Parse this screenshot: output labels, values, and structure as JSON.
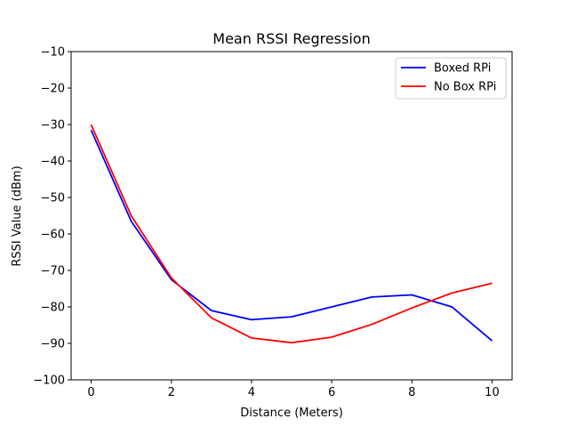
{
  "chart_data": {
    "type": "line",
    "title": "Mean RSSI Regression",
    "xlabel": "Distance (Meters)",
    "ylabel": "RSSI Value (dBm)",
    "xlim": [
      -0.5,
      10.5
    ],
    "ylim": [
      -100,
      -10
    ],
    "xticks": [
      0,
      2,
      4,
      6,
      8,
      10
    ],
    "yticks": [
      -100,
      -90,
      -80,
      -70,
      -60,
      -50,
      -40,
      -30,
      -20,
      -10
    ],
    "grid": false,
    "legend_position": "top-right",
    "x": [
      0,
      1,
      2,
      3,
      4,
      5,
      6,
      7,
      8,
      9,
      10
    ],
    "series": [
      {
        "name": "Boxed RPi",
        "color": "#0000ff",
        "values": [
          -31.5,
          -56.5,
          -72.5,
          -81.0,
          -83.5,
          -82.7,
          -80.0,
          -77.3,
          -76.7,
          -80.0,
          -89.3
        ]
      },
      {
        "name": "No Box RPi",
        "color": "#ff0000",
        "values": [
          -30.0,
          -55.0,
          -72.0,
          -83.0,
          -88.5,
          -89.8,
          -88.3,
          -84.8,
          -80.3,
          -76.2,
          -73.5
        ]
      }
    ]
  }
}
